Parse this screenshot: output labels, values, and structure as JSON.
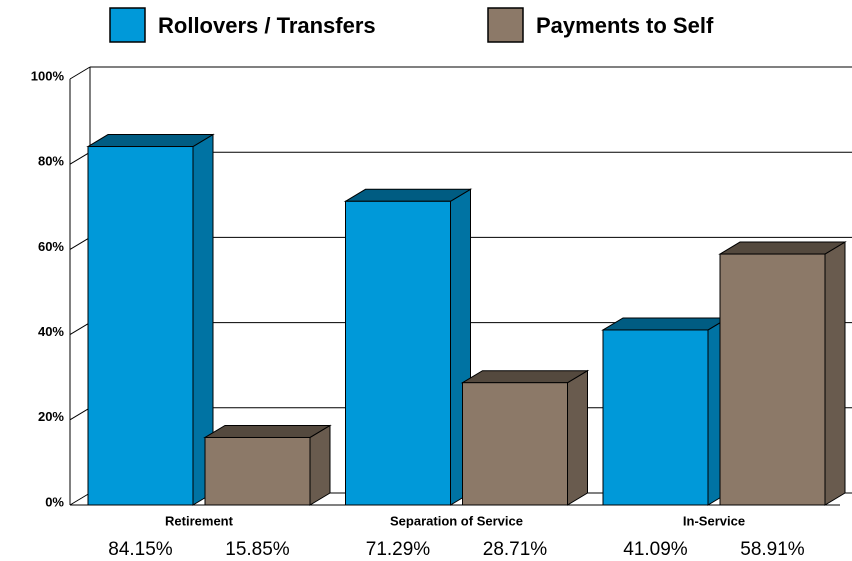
{
  "chart_data": {
    "type": "bar3d",
    "categories": [
      "Retirement",
      "Separation of Service",
      "In-Service"
    ],
    "series": [
      {
        "name": "Rollovers / Transfers",
        "color": "#0099d9",
        "values": [
          84.15,
          71.29,
          41.09
        ],
        "value_labels": [
          "84.15%",
          "71.29%",
          "41.09%"
        ]
      },
      {
        "name": "Payments to Self",
        "color": "#8c7968",
        "values": [
          15.85,
          28.71,
          58.91
        ],
        "value_labels": [
          "15.85%",
          "28.71%",
          "58.91%"
        ]
      }
    ],
    "ylim": [
      0,
      100
    ],
    "yticks": [
      {
        "value": 0,
        "label": "0%"
      },
      {
        "value": 20,
        "label": "20%"
      },
      {
        "value": 40,
        "label": "40%"
      },
      {
        "value": 60,
        "label": "60%"
      },
      {
        "value": 80,
        "label": "80%"
      },
      {
        "value": 100,
        "label": "100%"
      }
    ],
    "grid": true,
    "legend": "top"
  }
}
